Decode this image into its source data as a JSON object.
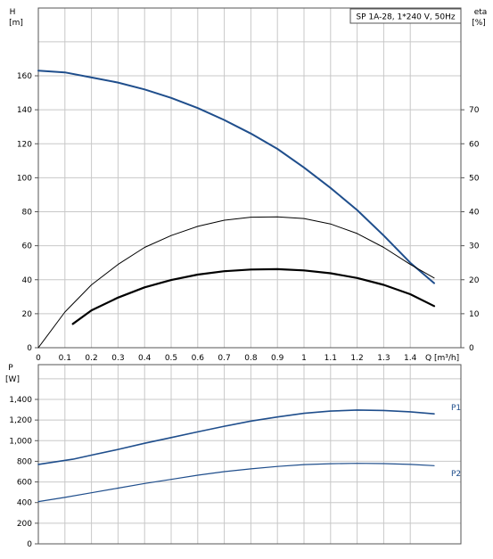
{
  "chart_data": [
    {
      "type": "line",
      "title": "SP 1A-28, 1*240 V, 50Hz",
      "xlabel": "Q [m³/h]",
      "ylabel_name": "H",
      "ylabel_unit": "[m]",
      "y2label_name": "eta",
      "y2label_unit": "[%]",
      "xlim": [
        0,
        1.5
      ],
      "ylim": [
        0,
        180
      ],
      "y2lim": [
        0,
        90
      ],
      "x_ticks": [
        "0",
        "0.1",
        "0.2",
        "0.3",
        "0.4",
        "0.5",
        "0.6",
        "0.7",
        "0.8",
        "0.9",
        "1",
        "1.1",
        "1.2",
        "1.3",
        "1.4"
      ],
      "y_ticks": [
        "0",
        "20",
        "40",
        "60",
        "80",
        "100",
        "120",
        "140",
        "160"
      ],
      "y2_ticks": [
        "0",
        "10",
        "20",
        "30",
        "40",
        "50",
        "60",
        "70"
      ],
      "grid": true,
      "series": [
        {
          "axis": "left",
          "color": "#1f4e8c",
          "x": [
            0,
            0.1,
            0.2,
            0.3,
            0.4,
            0.5,
            0.6,
            0.7,
            0.8,
            0.9,
            1.0,
            1.1,
            1.2,
            1.3,
            1.4,
            1.49
          ],
          "values": [
            163,
            162,
            159,
            156,
            152,
            147,
            141,
            134,
            126,
            117,
            106,
            94,
            81,
            66,
            50,
            38
          ]
        },
        {
          "axis": "right",
          "color": "#000000",
          "x": [
            0,
            0.1,
            0.2,
            0.3,
            0.4,
            0.5,
            0.6,
            0.7,
            0.8,
            0.9,
            1.0,
            1.1,
            1.2,
            1.3,
            1.4,
            1.49
          ],
          "values": [
            0,
            10.5,
            18.5,
            24.5,
            29.5,
            33,
            35.7,
            37.5,
            38.4,
            38.5,
            38,
            36.4,
            33.6,
            29.5,
            24.5,
            20.5
          ]
        },
        {
          "axis": "left",
          "color": "#000000",
          "x": [
            0.13,
            0.2,
            0.3,
            0.4,
            0.5,
            0.6,
            0.7,
            0.8,
            0.9,
            1.0,
            1.1,
            1.2,
            1.3,
            1.4,
            1.49
          ],
          "values": [
            14,
            22,
            29.5,
            35.5,
            39.8,
            43,
            45,
            46,
            46.2,
            45.5,
            43.8,
            41,
            37,
            31.5,
            24.5
          ]
        }
      ]
    },
    {
      "type": "line",
      "ylabel_name": "P",
      "ylabel_unit": "[W]",
      "xlim": [
        0,
        1.5
      ],
      "ylim": [
        0,
        1600
      ],
      "y_ticks": [
        "0",
        "200",
        "400",
        "600",
        "800",
        "1,000",
        "1,200",
        "1,400"
      ],
      "grid": true,
      "series": [
        {
          "name": "P1",
          "color": "#1f4e8c",
          "x": [
            0,
            0.13,
            0.2,
            0.3,
            0.4,
            0.5,
            0.6,
            0.7,
            0.8,
            0.9,
            1.0,
            1.1,
            1.2,
            1.3,
            1.4,
            1.49
          ],
          "values": [
            770,
            820,
            860,
            915,
            975,
            1030,
            1085,
            1140,
            1190,
            1230,
            1265,
            1287,
            1297,
            1293,
            1280,
            1260
          ]
        },
        {
          "name": "P2",
          "color": "#1f4e8c",
          "x": [
            0,
            0.1,
            0.2,
            0.3,
            0.4,
            0.5,
            0.6,
            0.7,
            0.8,
            0.9,
            1.0,
            1.1,
            1.2,
            1.3,
            1.4,
            1.49
          ],
          "values": [
            410,
            450,
            495,
            540,
            585,
            625,
            665,
            700,
            727,
            750,
            768,
            777,
            780,
            778,
            770,
            758
          ]
        }
      ]
    }
  ]
}
